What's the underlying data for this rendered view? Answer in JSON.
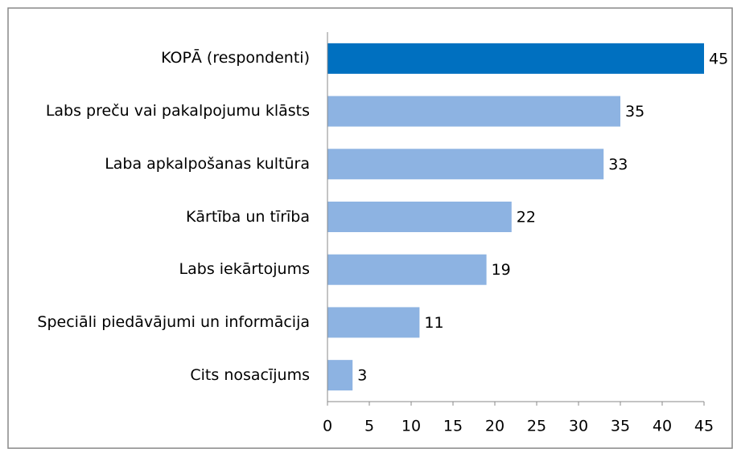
{
  "chart_data": {
    "type": "bar",
    "orientation": "horizontal",
    "categories": [
      "KOPĀ (respondenti)",
      "Labs preču vai pakalpojumu klāsts",
      "Laba apkalpošanas kultūra",
      "Kārtība un tīrība",
      "Labs iekārtojums",
      "Speciāli piedāvājumi un informācija",
      "Cits nosacījums"
    ],
    "values": [
      45,
      35,
      33,
      22,
      19,
      11,
      3
    ],
    "colors": [
      "#0070c0",
      "#8db3e2",
      "#8db3e2",
      "#8db3e2",
      "#8db3e2",
      "#8db3e2",
      "#8db3e2"
    ],
    "xlim": [
      0,
      45
    ],
    "xticks": [
      0,
      5,
      10,
      15,
      20,
      25,
      30,
      35,
      40,
      45
    ]
  }
}
